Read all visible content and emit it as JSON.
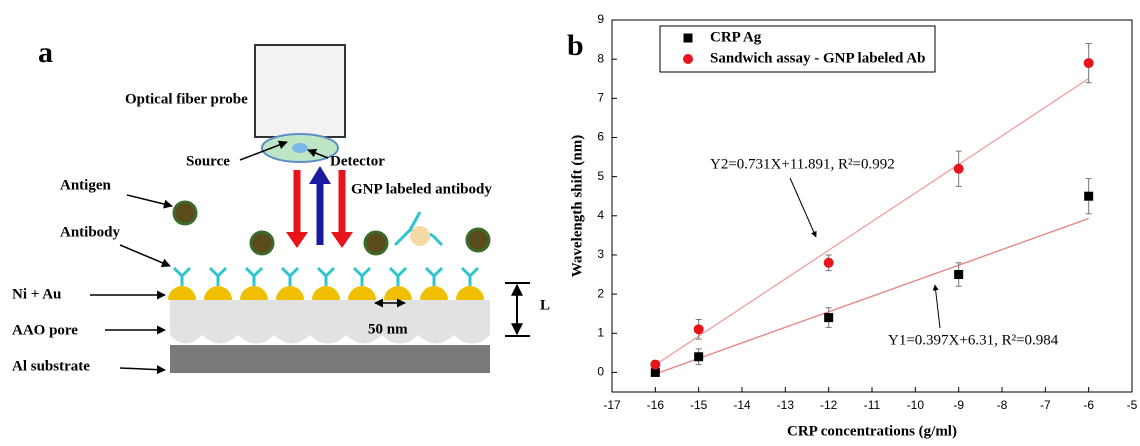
{
  "panel_a": {
    "label": "a",
    "probe": "Optical fiber probe",
    "source": "Source",
    "detector": "Detector",
    "gnp_antibody": "GNP labeled antibody",
    "antigen": "Antigen",
    "antibody": "Antibody",
    "ni_au": "Ni + Au",
    "pore_size": "50 nm",
    "length": "L",
    "aao_pore": "AAO pore",
    "substrate": "Al substrate"
  },
  "chart_data": {
    "type": "scatter",
    "panel_label": "b",
    "xlabel": "CRP concentrations (g/ml)",
    "ylabel": "Wavelength shift (nm)",
    "x": [
      -16,
      -15,
      -12,
      -9,
      -6
    ],
    "series": [
      {
        "name": "CRP Ag",
        "color": "#000000",
        "marker": "square",
        "values": [
          0,
          0.4,
          1.4,
          2.5,
          4.5
        ],
        "errors": [
          0.1,
          0.2,
          0.25,
          0.3,
          0.45
        ]
      },
      {
        "name": "Sandwich assay - GNP labeled Ab",
        "color": "#e8141b",
        "marker": "circle",
        "values": [
          0.2,
          1.1,
          2.8,
          5.2,
          7.9
        ],
        "errors": [
          0.1,
          0.25,
          0.2,
          0.45,
          0.5
        ]
      }
    ],
    "fit_lines": [
      {
        "color": "#e88080",
        "x": [
          -16,
          -6
        ],
        "values": [
          -0.04,
          3.93
        ]
      },
      {
        "color": "#f0a0a0",
        "x": [
          -16,
          -6
        ],
        "values": [
          0.195,
          7.505
        ]
      }
    ],
    "annotations": [
      "Y2=0.731X+11.891, R²=0.992",
      "Y1=0.397X+6.31, R²=0.984"
    ],
    "xlim": [
      -17,
      -5
    ],
    "xticks": [
      -17,
      -16,
      -15,
      -14,
      -13,
      -12,
      -11,
      -10,
      -9,
      -8,
      -7,
      -6,
      -5
    ],
    "ylim": [
      -0.5,
      9
    ],
    "yticks": [
      0,
      1,
      2,
      3,
      4,
      5,
      6,
      7,
      8,
      9
    ],
    "legend": "upper left"
  }
}
